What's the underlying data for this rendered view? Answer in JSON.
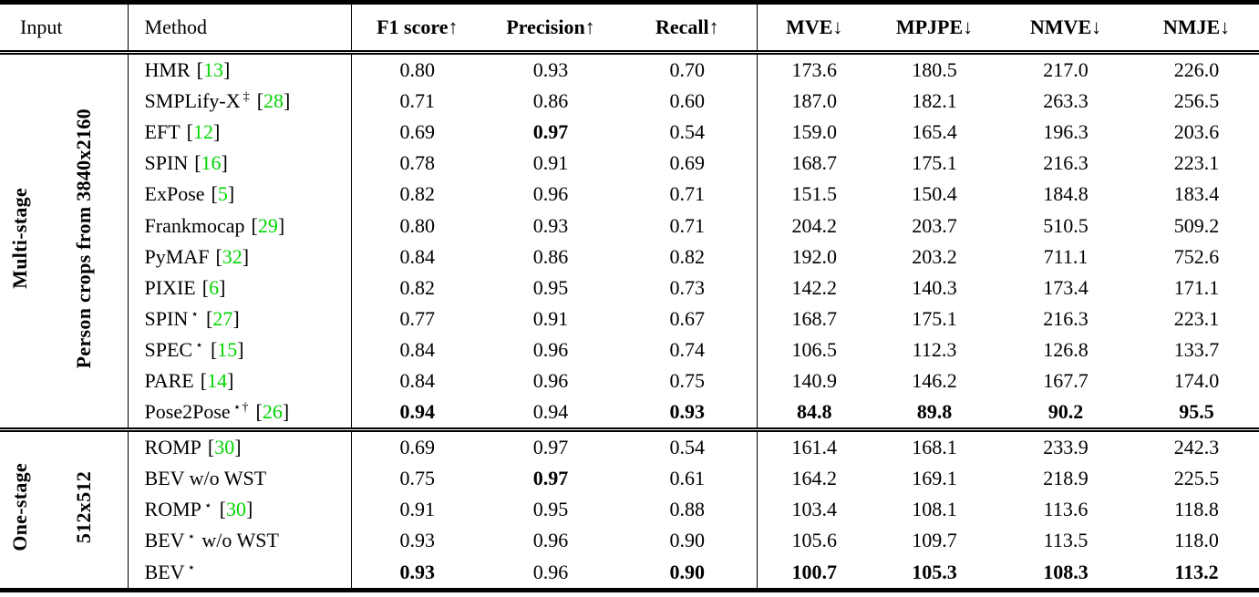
{
  "table": {
    "citation_color": "#00d400",
    "cite_brackets": [
      "[",
      "]"
    ],
    "headers": [
      "Input",
      "Method",
      "F1 score↑",
      "Precision↑",
      "Recall↑",
      "MVE↓",
      "MPJPE↓",
      "NMVE↓",
      "NMJE↓"
    ],
    "groups": [
      {
        "stage_label": "Multi-stage",
        "input_label": "Person crops from 3840x2160",
        "rows": [
          {
            "method": {
              "name": "HMR",
              "sup": "",
              "suffix": "",
              "cite": "13"
            },
            "values": [
              "0.80",
              "0.93",
              "0.70",
              "173.6",
              "180.5",
              "217.0",
              "226.0"
            ],
            "value_bold": [
              false,
              false,
              false,
              false,
              false,
              false,
              false
            ]
          },
          {
            "method": {
              "name": "SMPLify-X",
              "sup": "‡",
              "suffix": "",
              "cite": "28"
            },
            "values": [
              "0.71",
              "0.86",
              "0.60",
              "187.0",
              "182.1",
              "263.3",
              "256.5"
            ],
            "value_bold": [
              false,
              false,
              false,
              false,
              false,
              false,
              false
            ]
          },
          {
            "method": {
              "name": "EFT",
              "sup": "",
              "suffix": "",
              "cite": "12"
            },
            "values": [
              "0.69",
              "0.97",
              "0.54",
              "159.0",
              "165.4",
              "196.3",
              "203.6"
            ],
            "value_bold": [
              false,
              true,
              false,
              false,
              false,
              false,
              false
            ]
          },
          {
            "method": {
              "name": "SPIN",
              "sup": "",
              "suffix": "",
              "cite": "16"
            },
            "values": [
              "0.78",
              "0.91",
              "0.69",
              "168.7",
              "175.1",
              "216.3",
              "223.1"
            ],
            "value_bold": [
              false,
              false,
              false,
              false,
              false,
              false,
              false
            ]
          },
          {
            "method": {
              "name": "ExPose",
              "sup": "",
              "suffix": "",
              "cite": "5"
            },
            "values": [
              "0.82",
              "0.96",
              "0.71",
              "151.5",
              "150.4",
              "184.8",
              "183.4"
            ],
            "value_bold": [
              false,
              false,
              false,
              false,
              false,
              false,
              false
            ]
          },
          {
            "method": {
              "name": "Frankmocap",
              "sup": "",
              "suffix": "",
              "cite": "29"
            },
            "values": [
              "0.80",
              "0.93",
              "0.71",
              "204.2",
              "203.7",
              "510.5",
              "509.2"
            ],
            "value_bold": [
              false,
              false,
              false,
              false,
              false,
              false,
              false
            ]
          },
          {
            "method": {
              "name": "PyMAF",
              "sup": "",
              "suffix": "",
              "cite": "32"
            },
            "values": [
              "0.84",
              "0.86",
              "0.82",
              "192.0",
              "203.2",
              "711.1",
              "752.6"
            ],
            "value_bold": [
              false,
              false,
              false,
              false,
              false,
              false,
              false
            ]
          },
          {
            "method": {
              "name": "PIXIE",
              "sup": "",
              "suffix": "",
              "cite": "6"
            },
            "values": [
              "0.82",
              "0.95",
              "0.73",
              "142.2",
              "140.3",
              "173.4",
              "171.1"
            ],
            "value_bold": [
              false,
              false,
              false,
              false,
              false,
              false,
              false
            ]
          },
          {
            "method": {
              "name": "SPIN",
              "sup": "⋆",
              "suffix": "",
              "cite": "27"
            },
            "values": [
              "0.77",
              "0.91",
              "0.67",
              "168.7",
              "175.1",
              "216.3",
              "223.1"
            ],
            "value_bold": [
              false,
              false,
              false,
              false,
              false,
              false,
              false
            ]
          },
          {
            "method": {
              "name": "SPEC",
              "sup": "⋆",
              "suffix": "",
              "cite": "15"
            },
            "values": [
              "0.84",
              "0.96",
              "0.74",
              "106.5",
              "112.3",
              "126.8",
              "133.7"
            ],
            "value_bold": [
              false,
              false,
              false,
              false,
              false,
              false,
              false
            ]
          },
          {
            "method": {
              "name": "PARE",
              "sup": "",
              "suffix": "",
              "cite": "14"
            },
            "values": [
              "0.84",
              "0.96",
              "0.75",
              "140.9",
              "146.2",
              "167.7",
              "174.0"
            ],
            "value_bold": [
              false,
              false,
              false,
              false,
              false,
              false,
              false
            ]
          },
          {
            "method": {
              "name": "Pose2Pose",
              "sup": "⋆†",
              "suffix": "",
              "cite": "26"
            },
            "values": [
              "0.94",
              "0.94",
              "0.93",
              "84.8",
              "89.8",
              "90.2",
              "95.5"
            ],
            "value_bold": [
              true,
              false,
              true,
              true,
              true,
              true,
              true
            ]
          }
        ]
      },
      {
        "stage_label": "One-stage",
        "input_label": "512x512",
        "rows": [
          {
            "method": {
              "name": "ROMP",
              "sup": "",
              "suffix": "",
              "cite": "30"
            },
            "values": [
              "0.69",
              "0.97",
              "0.54",
              "161.4",
              "168.1",
              "233.9",
              "242.3"
            ],
            "value_bold": [
              false,
              false,
              false,
              false,
              false,
              false,
              false
            ]
          },
          {
            "method": {
              "name": "BEV w/o WST",
              "sup": "",
              "suffix": "",
              "cite": ""
            },
            "values": [
              "0.75",
              "0.97",
              "0.61",
              "164.2",
              "169.1",
              "218.9",
              "225.5"
            ],
            "value_bold": [
              false,
              true,
              false,
              false,
              false,
              false,
              false
            ]
          },
          {
            "method": {
              "name": "ROMP",
              "sup": "⋆",
              "suffix": "",
              "cite": "30"
            },
            "values": [
              "0.91",
              "0.95",
              "0.88",
              "103.4",
              "108.1",
              "113.6",
              "118.8"
            ],
            "value_bold": [
              false,
              false,
              false,
              false,
              false,
              false,
              false
            ]
          },
          {
            "method": {
              "name": "BEV",
              "sup": "⋆",
              "suffix": "w/o WST",
              "cite": ""
            },
            "values": [
              "0.93",
              "0.96",
              "0.90",
              "105.6",
              "109.7",
              "113.5",
              "118.0"
            ],
            "value_bold": [
              false,
              false,
              false,
              false,
              false,
              false,
              false
            ]
          },
          {
            "method": {
              "name": "BEV",
              "sup": "⋆",
              "suffix": "",
              "cite": ""
            },
            "values": [
              "0.93",
              "0.96",
              "0.90",
              "100.7",
              "105.3",
              "108.3",
              "113.2"
            ],
            "value_bold": [
              true,
              false,
              true,
              true,
              true,
              true,
              true
            ]
          }
        ]
      }
    ]
  }
}
